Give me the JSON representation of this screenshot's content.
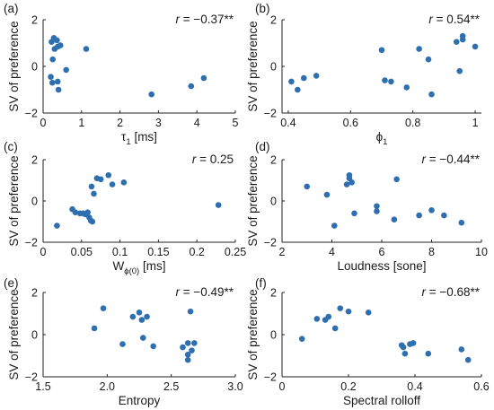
{
  "figure": {
    "marker_color": "#2e6fb0",
    "axis_color": "#222222",
    "text_color": "#1a1a1a"
  },
  "chart_data": [
    {
      "type": "scatter",
      "panel_label": "(a)",
      "xlabel": "τ",
      "xlabel_sub": "1",
      "xlabel_unit": " [ms]",
      "ylabel": "SV of preference",
      "r_prefix": "r",
      "r_value": " = −0.37**",
      "xlim": [
        0,
        5
      ],
      "ylim": [
        -2,
        2
      ],
      "xticks": [
        0,
        1,
        2,
        3,
        4,
        5
      ],
      "yticks": [
        -2,
        0,
        2
      ],
      "xtick_labels": [
        "0",
        "1",
        "2",
        "3",
        "4",
        "5"
      ],
      "ytick_labels": [
        "−2",
        "0",
        "2"
      ],
      "x": [
        0.22,
        0.28,
        0.36,
        0.45,
        0.3,
        0.38,
        0.25,
        0.6,
        1.12,
        0.2,
        0.24,
        0.38,
        0.4,
        2.82,
        3.85,
        4.18
      ],
      "y": [
        1.05,
        1.22,
        1.12,
        0.9,
        0.75,
        0.85,
        0.3,
        -0.15,
        0.75,
        -0.45,
        -0.7,
        -0.65,
        -1.0,
        -1.2,
        -0.85,
        -0.5
      ]
    },
    {
      "type": "scatter",
      "panel_label": "(b)",
      "xlabel": "ϕ",
      "xlabel_sub": "1",
      "xlabel_unit": "",
      "ylabel": "SV of preference",
      "r_prefix": "r",
      "r_value": " = 0.54**",
      "xlim": [
        0.38,
        1.02
      ],
      "ylim": [
        -2,
        2
      ],
      "xticks": [
        0.4,
        0.6,
        0.8,
        1.0
      ],
      "yticks": [
        -2,
        0,
        2
      ],
      "xtick_labels": [
        "0.4",
        "0.6",
        "0.8",
        "1"
      ],
      "ytick_labels": [
        "−2",
        "0",
        "2"
      ],
      "x": [
        0.41,
        0.43,
        0.45,
        0.49,
        0.7,
        0.71,
        0.73,
        0.78,
        0.82,
        0.85,
        0.86,
        0.94,
        0.95,
        0.96,
        0.96,
        1.0
      ],
      "y": [
        -0.65,
        -1.0,
        -0.5,
        -0.4,
        0.7,
        -0.6,
        -0.65,
        -0.9,
        0.75,
        0.3,
        -1.2,
        1.05,
        -0.2,
        1.15,
        1.3,
        0.85
      ]
    },
    {
      "type": "scatter",
      "panel_label": "(c)",
      "xlabel": "W",
      "xlabel_sub": "ϕ(0)",
      "xlabel_unit": " [ms]",
      "ylabel": "SV of preference",
      "r_prefix": "r",
      "r_value": " = 0.25",
      "xlim": [
        0,
        0.25
      ],
      "ylim": [
        -2,
        2
      ],
      "xticks": [
        0,
        0.05,
        0.1,
        0.15,
        0.2,
        0.25
      ],
      "yticks": [
        -2,
        0,
        2
      ],
      "xtick_labels": [
        "0",
        "0.05",
        "0.1",
        "0.15",
        "0.2",
        "0.25"
      ],
      "ytick_labels": [
        "−2",
        "0",
        "2"
      ],
      "x": [
        0.018,
        0.038,
        0.042,
        0.048,
        0.052,
        0.055,
        0.058,
        0.06,
        0.062,
        0.063,
        0.064,
        0.066,
        0.07,
        0.075,
        0.085,
        0.09,
        0.105,
        0.228
      ],
      "y": [
        -1.2,
        -0.4,
        -0.55,
        -0.6,
        -0.6,
        -0.65,
        -0.55,
        -0.8,
        -0.95,
        0.7,
        -1.0,
        0.35,
        1.1,
        1.05,
        1.25,
        0.8,
        0.9,
        -0.2
      ]
    },
    {
      "type": "scatter",
      "panel_label": "(d)",
      "xlabel": "Loudness [sone]",
      "xlabel_sub": "",
      "xlabel_unit": "",
      "ylabel": "SV of preference",
      "r_prefix": "r",
      "r_value": " = −0.44**",
      "xlim": [
        2,
        10
      ],
      "ylim": [
        -2,
        2
      ],
      "xticks": [
        2,
        4,
        6,
        8,
        10
      ],
      "yticks": [
        -2,
        0,
        2
      ],
      "xtick_labels": [
        "2",
        "4",
        "6",
        "8",
        "10"
      ],
      "ytick_labels": [
        "−2",
        "0",
        "2"
      ],
      "x": [
        3.0,
        3.8,
        4.1,
        4.6,
        4.7,
        4.7,
        4.8,
        4.9,
        5.8,
        5.8,
        6.5,
        6.6,
        7.5,
        8.0,
        8.5,
        9.2
      ],
      "y": [
        0.7,
        0.3,
        -1.2,
        0.8,
        1.1,
        1.25,
        0.9,
        -0.6,
        -0.25,
        -0.5,
        -0.9,
        1.05,
        -0.7,
        -0.45,
        -0.7,
        -1.05
      ]
    },
    {
      "type": "scatter",
      "panel_label": "(e)",
      "xlabel": "Entropy",
      "xlabel_sub": "",
      "xlabel_unit": "",
      "ylabel": "SV of preference",
      "r_prefix": "r",
      "r_value": " = −0.49**",
      "xlim": [
        1.5,
        3.0
      ],
      "ylim": [
        -2,
        2
      ],
      "xticks": [
        1.5,
        2.0,
        2.5,
        3.0
      ],
      "yticks": [
        -2,
        0,
        2
      ],
      "xtick_labels": [
        "1.5",
        "2.0",
        "2.5",
        "3.0"
      ],
      "ytick_labels": [
        "−2",
        "0",
        "2"
      ],
      "x": [
        1.9,
        1.97,
        2.12,
        2.2,
        2.25,
        2.27,
        2.28,
        2.31,
        2.36,
        2.59,
        2.63,
        2.63,
        2.63,
        2.65,
        2.66,
        2.68
      ],
      "y": [
        0.3,
        1.25,
        -0.45,
        0.85,
        1.05,
        0.7,
        -0.15,
        0.85,
        -0.55,
        -0.6,
        -0.95,
        -1.2,
        -0.4,
        1.1,
        -0.75,
        -0.4
      ]
    },
    {
      "type": "scatter",
      "panel_label": "(f)",
      "xlabel": "Spectral rolloff",
      "xlabel_sub": "",
      "xlabel_unit": "",
      "ylabel": "SV of preference",
      "r_prefix": "r",
      "r_value": " = −0.68**",
      "xlim": [
        0,
        0.6
      ],
      "ylim": [
        -2,
        2
      ],
      "xticks": [
        0,
        0.2,
        0.4,
        0.6
      ],
      "yticks": [
        -2,
        0,
        2
      ],
      "xtick_labels": [
        "0",
        "0.2",
        "0.4",
        "0.6"
      ],
      "ytick_labels": [
        "−2",
        "0",
        "2"
      ],
      "x": [
        0.06,
        0.105,
        0.13,
        0.14,
        0.16,
        0.175,
        0.2,
        0.26,
        0.36,
        0.365,
        0.37,
        0.385,
        0.395,
        0.44,
        0.54,
        0.56
      ],
      "y": [
        -0.2,
        0.75,
        0.7,
        0.85,
        0.3,
        1.25,
        1.1,
        1.05,
        -0.5,
        -0.6,
        -0.9,
        -0.45,
        -0.4,
        -0.9,
        -0.7,
        -1.2
      ]
    }
  ]
}
